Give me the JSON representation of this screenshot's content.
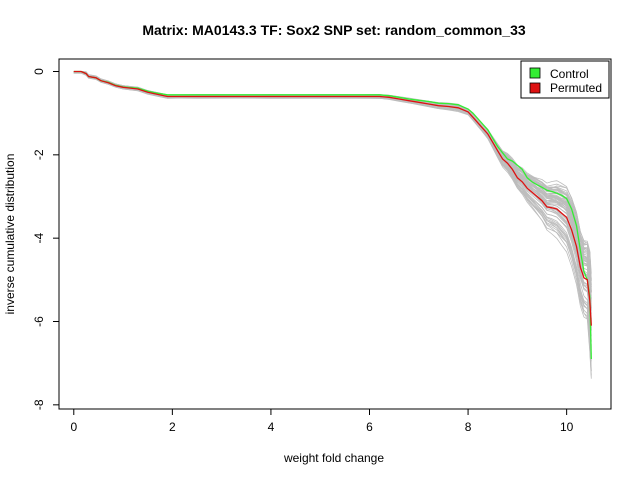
{
  "chart_data": {
    "type": "line",
    "title": "Matrix: MA0143.3 TF: Sox2 SNP set: random_common_33",
    "xlabel": "weight fold change",
    "ylabel": "inverse cumulative distribution",
    "xlim": [
      -0.3,
      10.9
    ],
    "ylim": [
      -8.1,
      0.3
    ],
    "x_ticks": [
      0,
      2,
      4,
      6,
      8,
      10
    ],
    "y_ticks": [
      0,
      -2,
      -4,
      -6,
      -8
    ],
    "grid": false,
    "legend_position": "top-right",
    "series": [
      {
        "name": "Control",
        "color": "#33ee33",
        "points": [
          [
            0.0,
            0.0
          ],
          [
            0.15,
            0.0
          ],
          [
            0.25,
            -0.05
          ],
          [
            0.3,
            -0.12
          ],
          [
            0.45,
            -0.15
          ],
          [
            0.55,
            -0.22
          ],
          [
            0.7,
            -0.26
          ],
          [
            0.85,
            -0.33
          ],
          [
            1.0,
            -0.37
          ],
          [
            1.3,
            -0.4
          ],
          [
            1.5,
            -0.47
          ],
          [
            1.7,
            -0.52
          ],
          [
            1.9,
            -0.56
          ],
          [
            2.5,
            -0.56
          ],
          [
            4.0,
            -0.56
          ],
          [
            5.5,
            -0.56
          ],
          [
            6.2,
            -0.56
          ],
          [
            6.4,
            -0.58
          ],
          [
            6.6,
            -0.62
          ],
          [
            6.8,
            -0.66
          ],
          [
            7.0,
            -0.69
          ],
          [
            7.2,
            -0.72
          ],
          [
            7.4,
            -0.76
          ],
          [
            7.6,
            -0.77
          ],
          [
            7.8,
            -0.8
          ],
          [
            8.0,
            -0.9
          ],
          [
            8.1,
            -1.0
          ],
          [
            8.25,
            -1.2
          ],
          [
            8.4,
            -1.4
          ],
          [
            8.5,
            -1.6
          ],
          [
            8.6,
            -1.8
          ],
          [
            8.7,
            -1.95
          ],
          [
            8.8,
            -2.1
          ],
          [
            8.9,
            -2.15
          ],
          [
            9.0,
            -2.25
          ],
          [
            9.1,
            -2.35
          ],
          [
            9.2,
            -2.55
          ],
          [
            9.3,
            -2.65
          ],
          [
            9.4,
            -2.72
          ],
          [
            9.5,
            -2.78
          ],
          [
            9.6,
            -2.85
          ],
          [
            9.7,
            -2.88
          ],
          [
            9.8,
            -2.92
          ],
          [
            9.9,
            -2.97
          ],
          [
            10.0,
            -3.05
          ],
          [
            10.1,
            -3.3
          ],
          [
            10.2,
            -3.7
          ],
          [
            10.28,
            -4.3
          ],
          [
            10.35,
            -4.8
          ],
          [
            10.42,
            -5.0
          ],
          [
            10.47,
            -5.4
          ],
          [
            10.5,
            -6.9
          ]
        ]
      },
      {
        "name": "Permuted",
        "color": "#dd1111",
        "points": [
          [
            0.0,
            0.0
          ],
          [
            0.15,
            0.0
          ],
          [
            0.25,
            -0.05
          ],
          [
            0.3,
            -0.12
          ],
          [
            0.45,
            -0.15
          ],
          [
            0.55,
            -0.22
          ],
          [
            0.7,
            -0.27
          ],
          [
            0.85,
            -0.34
          ],
          [
            1.0,
            -0.38
          ],
          [
            1.3,
            -0.42
          ],
          [
            1.5,
            -0.5
          ],
          [
            1.7,
            -0.55
          ],
          [
            1.9,
            -0.6
          ],
          [
            2.5,
            -0.6
          ],
          [
            4.0,
            -0.6
          ],
          [
            5.5,
            -0.6
          ],
          [
            6.2,
            -0.6
          ],
          [
            6.4,
            -0.62
          ],
          [
            6.6,
            -0.66
          ],
          [
            6.8,
            -0.7
          ],
          [
            7.0,
            -0.74
          ],
          [
            7.2,
            -0.78
          ],
          [
            7.4,
            -0.82
          ],
          [
            7.6,
            -0.84
          ],
          [
            7.8,
            -0.87
          ],
          [
            8.0,
            -0.97
          ],
          [
            8.1,
            -1.1
          ],
          [
            8.25,
            -1.3
          ],
          [
            8.4,
            -1.5
          ],
          [
            8.5,
            -1.7
          ],
          [
            8.6,
            -1.9
          ],
          [
            8.7,
            -2.1
          ],
          [
            8.8,
            -2.2
          ],
          [
            8.9,
            -2.35
          ],
          [
            9.0,
            -2.55
          ],
          [
            9.1,
            -2.65
          ],
          [
            9.2,
            -2.8
          ],
          [
            9.3,
            -2.9
          ],
          [
            9.4,
            -3.0
          ],
          [
            9.5,
            -3.1
          ],
          [
            9.6,
            -3.25
          ],
          [
            9.7,
            -3.27
          ],
          [
            9.8,
            -3.3
          ],
          [
            9.9,
            -3.4
          ],
          [
            10.0,
            -3.5
          ],
          [
            10.1,
            -3.8
          ],
          [
            10.2,
            -4.2
          ],
          [
            10.28,
            -4.7
          ],
          [
            10.35,
            -4.95
          ],
          [
            10.42,
            -5.0
          ],
          [
            10.47,
            -5.5
          ],
          [
            10.5,
            -6.1
          ]
        ]
      }
    ],
    "background_series": {
      "count": 60,
      "color": "#bdbdbd",
      "description_in_legend": false
    }
  }
}
